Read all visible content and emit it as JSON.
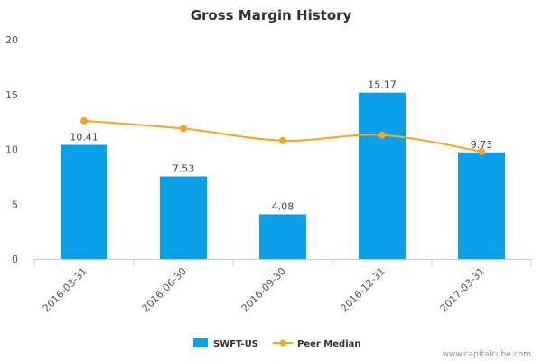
{
  "chart_data": {
    "type": "bar",
    "title": "Gross Margin History",
    "categories": [
      "2016-03-31",
      "2016-06-30",
      "2016-09-30",
      "2016-12-31",
      "2017-03-31"
    ],
    "series": [
      {
        "name": "SWFT-US",
        "type": "bar",
        "values": [
          10.41,
          7.53,
          4.08,
          15.17,
          9.73
        ],
        "color": "#0aa0e8"
      },
      {
        "name": "Peer Median",
        "type": "line",
        "values": [
          12.6,
          11.9,
          10.8,
          11.3,
          9.8
        ],
        "color": "#f5a623"
      }
    ],
    "data_labels": [
      "10.41",
      "7.53",
      "4.08",
      "15.17",
      "9.73"
    ],
    "ylim": [
      0,
      20
    ],
    "yticks": [
      0,
      5,
      10,
      15,
      20
    ],
    "grid": false,
    "legend_position": "bottom-center"
  },
  "credit": "www.capitalcube.com"
}
